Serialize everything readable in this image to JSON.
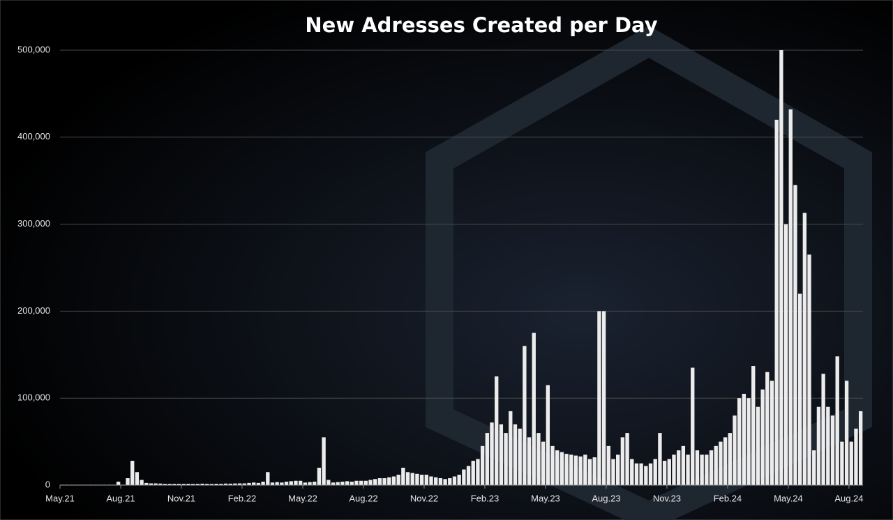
{
  "chart_data": {
    "type": "bar",
    "title": "New Adresses Created per Day",
    "color": "#ececec",
    "grid": true,
    "ylim": [
      0,
      500000
    ],
    "yticks": [
      0,
      {
        "value": 100000,
        "label": "100,000"
      },
      {
        "value": 200000,
        "label": "200,000"
      },
      {
        "value": 300000,
        "label": "300,000"
      },
      {
        "value": 400000,
        "label": "400,000"
      },
      {
        "value": 500000,
        "label": "500,000"
      }
    ],
    "categories": [
      "May.21",
      null,
      null,
      null,
      null,
      null,
      null,
      null,
      null,
      null,
      null,
      null,
      null,
      "Aug.21",
      null,
      null,
      null,
      null,
      null,
      null,
      null,
      null,
      null,
      null,
      null,
      null,
      "Nov.21",
      null,
      null,
      null,
      null,
      null,
      null,
      null,
      null,
      null,
      null,
      null,
      null,
      "Feb.22",
      null,
      null,
      null,
      null,
      null,
      null,
      null,
      null,
      null,
      null,
      null,
      null,
      "May.22",
      null,
      null,
      null,
      null,
      null,
      null,
      null,
      null,
      null,
      null,
      null,
      null,
      "Aug.22",
      null,
      null,
      null,
      null,
      null,
      null,
      null,
      null,
      null,
      null,
      null,
      null,
      "Nov.22",
      null,
      null,
      null,
      null,
      null,
      null,
      null,
      null,
      null,
      null,
      null,
      null,
      "Feb.23",
      null,
      null,
      null,
      null,
      null,
      null,
      null,
      null,
      null,
      null,
      null,
      null,
      "May.23",
      null,
      null,
      null,
      null,
      null,
      null,
      null,
      null,
      null,
      null,
      null,
      null,
      "Aug.23",
      null,
      null,
      null,
      null,
      null,
      null,
      null,
      null,
      null,
      null,
      null,
      null,
      "Nov.23",
      null,
      null,
      null,
      null,
      null,
      null,
      null,
      null,
      null,
      null,
      null,
      null,
      "Feb.24",
      null,
      null,
      null,
      null,
      null,
      null,
      null,
      null,
      null,
      null,
      null,
      null,
      "May.24",
      null,
      null,
      null,
      null,
      null,
      null,
      null,
      null,
      null,
      null,
      null,
      null,
      "Aug.24",
      null,
      null
    ],
    "values": [
      500,
      500,
      500,
      500,
      500,
      500,
      500,
      500,
      500,
      500,
      500,
      500,
      4000,
      500,
      8000,
      28000,
      15000,
      6000,
      2500,
      2000,
      2000,
      1800,
      1500,
      1500,
      1500,
      1500,
      1500,
      1600,
      1400,
      1500,
      1700,
      1500,
      1400,
      1600,
      1500,
      1800,
      1700,
      1900,
      2000,
      2000,
      2500,
      3000,
      2500,
      4000,
      15000,
      3000,
      3500,
      3000,
      4000,
      4500,
      5000,
      5000,
      3000,
      3500,
      4000,
      20000,
      55000,
      6000,
      3000,
      3500,
      4000,
      4500,
      4000,
      5000,
      5000,
      5000,
      6000,
      7000,
      8000,
      8000,
      9000,
      10000,
      12000,
      20000,
      15000,
      14000,
      13000,
      12000,
      12000,
      10000,
      9000,
      8000,
      7000,
      8000,
      10000,
      12000,
      18000,
      22000,
      28000,
      30000,
      45000,
      60000,
      72000,
      125000,
      70000,
      60000,
      85000,
      70000,
      65000,
      160000,
      55000,
      175000,
      60000,
      50000,
      115000,
      45000,
      40000,
      38000,
      36000,
      35000,
      34000,
      33000,
      35000,
      30000,
      32000,
      200000,
      200000,
      45000,
      30000,
      35000,
      55000,
      60000,
      30000,
      25000,
      25000,
      22000,
      25000,
      30000,
      60000,
      28000,
      30000,
      35000,
      40000,
      45000,
      35000,
      135000,
      40000,
      35000,
      35000,
      40000,
      45000,
      50000,
      55000,
      60000,
      80000,
      100000,
      105000,
      100000,
      137000,
      90000,
      110000,
      130000,
      120000,
      420000,
      500000,
      300000,
      432000,
      345000,
      220000,
      313000,
      265000,
      40000,
      90000,
      128000,
      90000,
      80000,
      148000,
      50000,
      120000,
      50000,
      65000,
      85000
    ]
  }
}
